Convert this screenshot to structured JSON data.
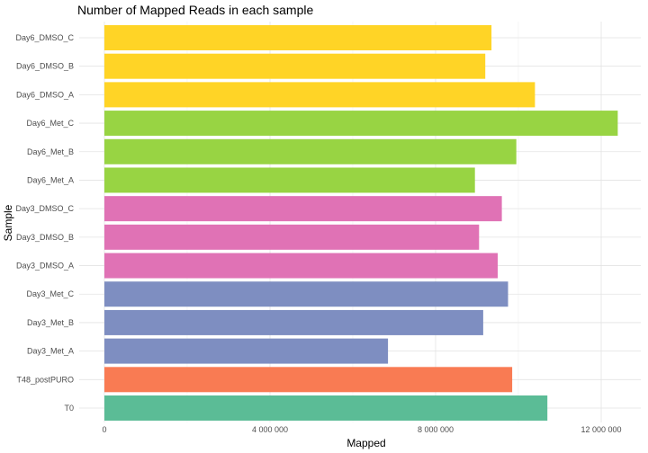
{
  "chart_data": {
    "type": "bar",
    "orientation": "horizontal",
    "title": "Number of Mapped Reads in each sample",
    "xlabel": "Mapped",
    "ylabel": "Sample",
    "xlim": [
      0,
      12600000
    ],
    "x_ticks": [
      0,
      4000000,
      8000000,
      12000000
    ],
    "x_tick_labels": [
      "0",
      "4 000 000",
      "8 000 000",
      "12 000 000"
    ],
    "grid": true,
    "legend": "none",
    "categories": [
      "T0",
      "T48_postPURO",
      "Day3_Met_A",
      "Day3_Met_B",
      "Day3_Met_C",
      "Day3_DMSO_A",
      "Day3_DMSO_B",
      "Day3_DMSO_C",
      "Day6_Met_A",
      "Day6_Met_B",
      "Day6_Met_C",
      "Day6_DMSO_A",
      "Day6_DMSO_B",
      "Day6_DMSO_C"
    ],
    "values": [
      10700000,
      9850000,
      6850000,
      9150000,
      9750000,
      9500000,
      9050000,
      9600000,
      8950000,
      9950000,
      12400000,
      10400000,
      9200000,
      9350000
    ],
    "colors": [
      "#5BBC96",
      "#F97B53",
      "#7E8EC1",
      "#7E8EC1",
      "#7E8EC1",
      "#E072B5",
      "#E072B5",
      "#E072B5",
      "#98D443",
      "#98D443",
      "#98D443",
      "#FFD426",
      "#FFD426",
      "#FFD426"
    ]
  },
  "theme": {
    "grid_major": "#e3e3e3",
    "grid_minor": "#f1f1f1",
    "background": "#ffffff"
  }
}
